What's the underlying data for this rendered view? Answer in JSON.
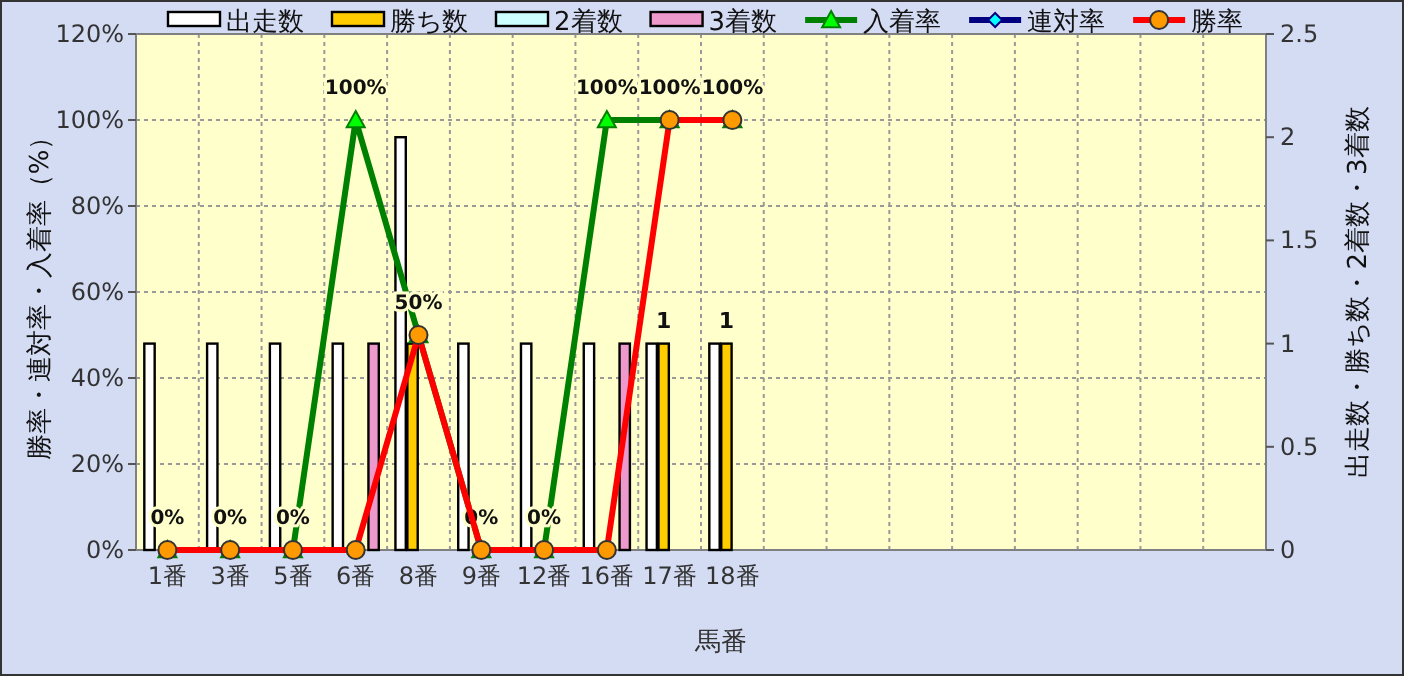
{
  "chart_data": {
    "type": "bar",
    "categories": [
      "1番",
      "3番",
      "5番",
      "6番",
      "8番",
      "9番",
      "12番",
      "16番",
      "17番",
      "18番",
      null,
      null,
      null,
      null,
      null,
      null,
      null,
      null
    ],
    "xlabel": "馬番",
    "ylabel": "勝率・連対率・入着率（%）",
    "y2label": "出走数・勝ち数・2着数・3着数",
    "series": [
      {
        "name": "出走数",
        "axis": "y2",
        "color": "#ffffff",
        "values": [
          1,
          1,
          1,
          1,
          2,
          1,
          1,
          1,
          1,
          1,
          null,
          null,
          null,
          null,
          null,
          null,
          null,
          null
        ]
      },
      {
        "name": "勝ち数",
        "axis": "y2",
        "color": "#ffcc00",
        "values": [
          0,
          0,
          0,
          0,
          1,
          0,
          0,
          0,
          1,
          1,
          null,
          null,
          null,
          null,
          null,
          null,
          null,
          null
        ],
        "value_labels": [
          null,
          null,
          null,
          null,
          null,
          null,
          null,
          null,
          "1",
          "1",
          null,
          null,
          null,
          null,
          null,
          null,
          null,
          null
        ]
      },
      {
        "name": "2着数",
        "axis": "y2",
        "color": "#ccffff",
        "values": [
          0,
          0,
          0,
          0,
          0,
          0,
          0,
          0,
          0,
          0,
          null,
          null,
          null,
          null,
          null,
          null,
          null,
          null
        ]
      },
      {
        "name": "3着数",
        "axis": "y2",
        "color": "#ee99cc",
        "values": [
          0,
          0,
          0,
          1,
          0,
          0,
          0,
          1,
          0,
          0,
          null,
          null,
          null,
          null,
          null,
          null,
          null,
          null
        ]
      },
      {
        "name": "入着率",
        "type": "line",
        "color": "#008000",
        "marker": "triangle",
        "values": [
          0,
          0,
          0,
          100,
          50,
          0,
          0,
          100,
          100,
          100,
          null,
          null,
          null,
          null,
          null,
          null,
          null,
          null
        ],
        "value_labels": [
          "0%",
          "0%",
          "0%",
          "100%",
          "50%",
          "0%",
          "0%",
          "100%",
          "100%",
          "100%",
          null,
          null,
          null,
          null,
          null,
          null,
          null,
          null
        ]
      },
      {
        "name": "連対率",
        "type": "line",
        "color": "#000080",
        "marker": "diamond",
        "values": [
          null,
          null,
          null,
          null,
          null,
          null,
          null,
          null,
          null,
          null,
          null,
          null,
          null,
          null,
          null,
          null,
          null,
          null
        ]
      },
      {
        "name": "勝率",
        "type": "line",
        "color": "#ff0000",
        "marker": "circle",
        "values": [
          0,
          0,
          0,
          0,
          50,
          0,
          0,
          0,
          100,
          100,
          null,
          null,
          null,
          null,
          null,
          null,
          null,
          null
        ]
      }
    ],
    "ylim": [
      0,
      120
    ],
    "yticks": [
      {
        "value": 0,
        "label": "0%"
      },
      {
        "value": 20,
        "label": "20%"
      },
      {
        "value": 40,
        "label": "40%"
      },
      {
        "value": 60,
        "label": "60%"
      },
      {
        "value": 80,
        "label": "80%"
      },
      {
        "value": 100,
        "label": "100%"
      },
      {
        "value": 120,
        "label": "120%"
      }
    ],
    "y2lim": [
      0,
      2.5
    ],
    "y2ticks": [
      0,
      0.5,
      1,
      1.5,
      2,
      2.5
    ],
    "grid": true,
    "legend": "top"
  }
}
